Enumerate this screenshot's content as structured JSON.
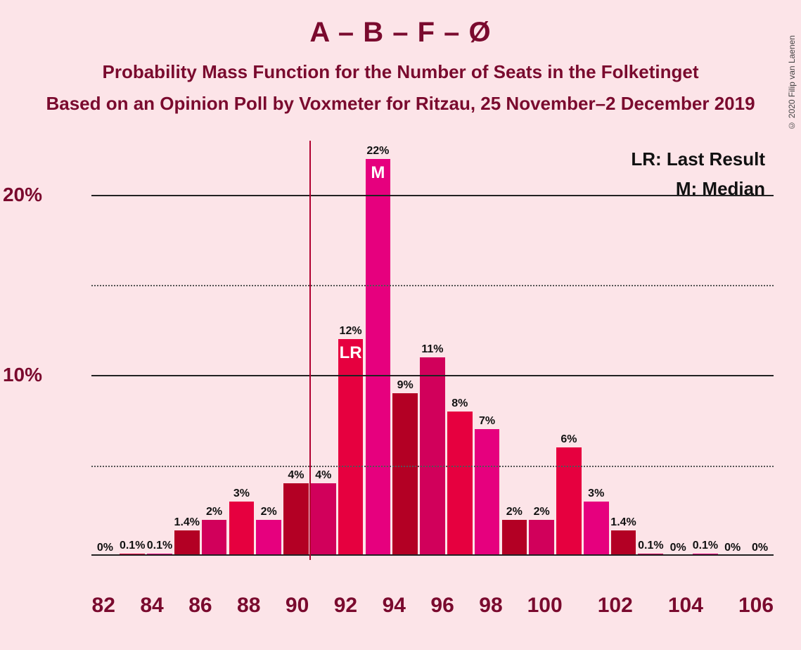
{
  "title": "A – B – F – Ø",
  "subtitle1": "Probability Mass Function for the Number of Seats in the Folketinget",
  "subtitle2": "Based on an Opinion Poll by Voxmeter for Ritzau, 25 November–2 December 2019",
  "copyright": "© 2020 Filip van Laenen",
  "legend": {
    "lr": "LR: Last Result",
    "m": "M: Median"
  },
  "chart": {
    "type": "bar",
    "background_color": "#fce4e8",
    "title_color": "#7a0a2e",
    "bar_palette": [
      "#e6007e",
      "#b30024",
      "#d1005b",
      "#e6003f"
    ],
    "palette_offset": 2,
    "ylim": [
      0,
      23
    ],
    "y_major_ticks": [
      10,
      20
    ],
    "y_minor_ticks": [
      5,
      15
    ],
    "y_tick_labels": {
      "10": "10%",
      "20": "20%"
    },
    "grid_solid_color": "#222222",
    "grid_dotted_color": "#555555",
    "vline_x": 89.5,
    "vline_color": "#b00030",
    "x_start": 82,
    "x_tick_step": 2,
    "bar_label_fontsize": 16,
    "inner_label_fontsize": 24,
    "axis_label_fontsize": 28,
    "bars": [
      {
        "x": 82,
        "value": 0,
        "label": "0%"
      },
      {
        "x": 83,
        "value": 0.1,
        "label": "0.1%"
      },
      {
        "x": 84,
        "value": 0.1,
        "label": "0.1%"
      },
      {
        "x": 85,
        "value": 1.4,
        "label": "1.4%"
      },
      {
        "x": 86,
        "value": 2,
        "label": "2%"
      },
      {
        "x": 87,
        "value": 3,
        "label": "3%"
      },
      {
        "x": 88,
        "value": 2,
        "label": "2%"
      },
      {
        "x": 89,
        "value": 4,
        "label": "4%"
      },
      {
        "x": 90,
        "value": 4,
        "label": "4%"
      },
      {
        "x": 91,
        "value": 12,
        "label": "12%",
        "inner": "LR"
      },
      {
        "x": 92,
        "value": 22,
        "label": "22%",
        "inner": "M"
      },
      {
        "x": 93,
        "value": 9,
        "label": "9%"
      },
      {
        "x": 94,
        "value": 11,
        "label": "11%"
      },
      {
        "x": 95,
        "value": 8,
        "label": "8%"
      },
      {
        "x": 96,
        "value": 7,
        "label": "7%"
      },
      {
        "x": 97,
        "value": 2,
        "label": "2%"
      },
      {
        "x": 98,
        "value": 2,
        "label": "2%"
      },
      {
        "x": 99,
        "value": 6,
        "label": "6%"
      },
      {
        "x": 100,
        "value": 3,
        "label": "3%"
      },
      {
        "x": 101,
        "value": 1.4,
        "label": "1.4%"
      },
      {
        "x": 102,
        "value": 0.1,
        "label": "0.1%"
      },
      {
        "x": 103,
        "value": 0,
        "label": "0%"
      },
      {
        "x": 104,
        "value": 0.1,
        "label": "0.1%"
      },
      {
        "x": 105,
        "value": 0,
        "label": "0%"
      },
      {
        "x": 106,
        "value": 0,
        "label": "0%"
      }
    ]
  }
}
